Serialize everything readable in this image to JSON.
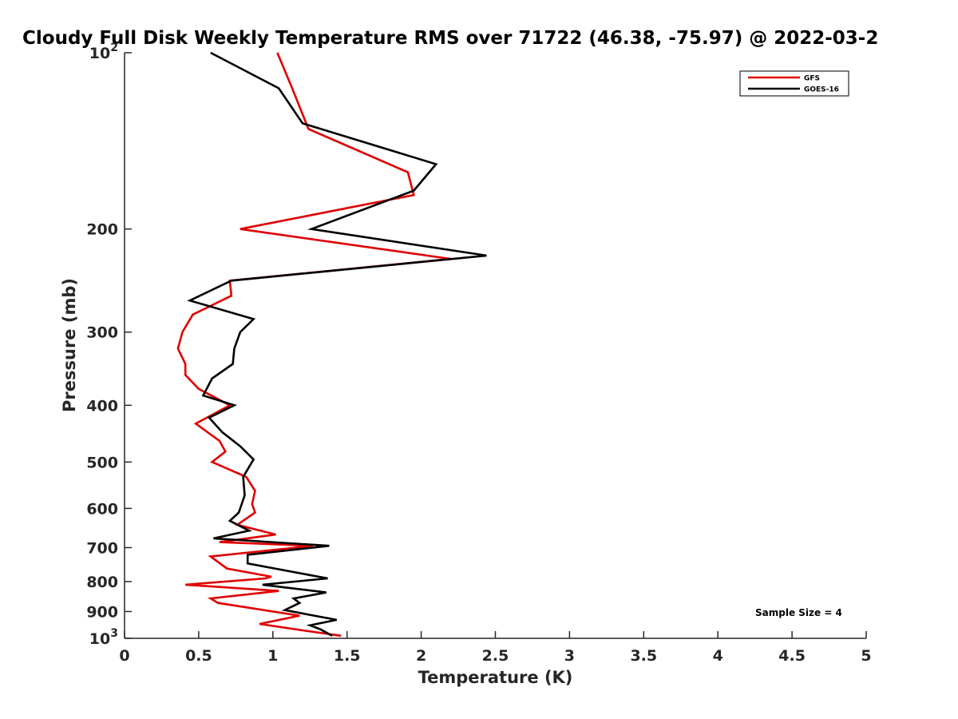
{
  "chart_data": {
    "type": "line",
    "title": "Cloudy Full Disk Weekly Temperature RMS over 71722 (46.38, -75.97) @ 2022-03-2",
    "xlabel": "Temperature (K)",
    "ylabel": "Pressure (mb)",
    "xlim": [
      0,
      5
    ],
    "ylim": [
      100,
      1000
    ],
    "y_scale": "log",
    "y_reversed": true,
    "grid": false,
    "legend_position": "top-right",
    "x_ticks": [
      "0",
      "0.5",
      "1",
      "1.5",
      "2",
      "2.5",
      "3",
      "3.5",
      "4",
      "4.5",
      "5"
    ],
    "y_ticks": [
      {
        "value": 100,
        "base": "10",
        "exp": "2"
      },
      {
        "value": 200,
        "label": "200"
      },
      {
        "value": 300,
        "label": "300"
      },
      {
        "value": 400,
        "label": "400"
      },
      {
        "value": 500,
        "label": "500"
      },
      {
        "value": 600,
        "label": "600"
      },
      {
        "value": 700,
        "label": "700"
      },
      {
        "value": 800,
        "label": "800"
      },
      {
        "value": 900,
        "label": "900"
      },
      {
        "value": 1000,
        "base": "10",
        "exp": "3"
      }
    ],
    "annotation": "Sample Size = 4",
    "series": [
      {
        "name": "GFS",
        "color": "#e00000",
        "points": [
          [
            1.03,
            100
          ],
          [
            1.13,
            115
          ],
          [
            1.24,
            135
          ],
          [
            1.91,
            160
          ],
          [
            1.95,
            175
          ],
          [
            0.78,
            200
          ],
          [
            2.2,
            225
          ],
          [
            0.71,
            245
          ],
          [
            0.72,
            260
          ],
          [
            0.46,
            280
          ],
          [
            0.39,
            300
          ],
          [
            0.36,
            320
          ],
          [
            0.41,
            340
          ],
          [
            0.41,
            355
          ],
          [
            0.5,
            375
          ],
          [
            0.71,
            400
          ],
          [
            0.48,
            430
          ],
          [
            0.64,
            460
          ],
          [
            0.68,
            480
          ],
          [
            0.59,
            500
          ],
          [
            0.82,
            530
          ],
          [
            0.88,
            560
          ],
          [
            0.86,
            590
          ],
          [
            0.88,
            610
          ],
          [
            0.76,
            640
          ],
          [
            1.02,
            665
          ],
          [
            0.64,
            685
          ],
          [
            1.27,
            695
          ],
          [
            0.58,
            725
          ],
          [
            0.69,
            760
          ],
          [
            0.99,
            785
          ],
          [
            0.95,
            790
          ],
          [
            0.41,
            810
          ],
          [
            1.04,
            830
          ],
          [
            0.58,
            855
          ],
          [
            0.63,
            870
          ],
          [
            1.18,
            915
          ],
          [
            0.91,
            945
          ],
          [
            1.27,
            975
          ],
          [
            1.46,
            990
          ]
        ]
      },
      {
        "name": "GOES-16",
        "color": "#000000",
        "points": [
          [
            0.58,
            100
          ],
          [
            1.04,
            115
          ],
          [
            1.2,
            132
          ],
          [
            2.1,
            155
          ],
          [
            1.95,
            172
          ],
          [
            1.26,
            200
          ],
          [
            2.44,
            222
          ],
          [
            0.72,
            245
          ],
          [
            0.44,
            265
          ],
          [
            0.87,
            285
          ],
          [
            0.78,
            300
          ],
          [
            0.74,
            320
          ],
          [
            0.73,
            340
          ],
          [
            0.59,
            360
          ],
          [
            0.53,
            385
          ],
          [
            0.74,
            400
          ],
          [
            0.57,
            420
          ],
          [
            0.66,
            445
          ],
          [
            0.78,
            470
          ],
          [
            0.87,
            495
          ],
          [
            0.8,
            530
          ],
          [
            0.81,
            570
          ],
          [
            0.77,
            610
          ],
          [
            0.71,
            630
          ],
          [
            0.84,
            655
          ],
          [
            0.6,
            675
          ],
          [
            1.38,
            695
          ],
          [
            0.83,
            720
          ],
          [
            0.83,
            745
          ],
          [
            1.37,
            790
          ],
          [
            0.93,
            810
          ],
          [
            1.36,
            835
          ],
          [
            1.14,
            855
          ],
          [
            1.18,
            870
          ],
          [
            1.08,
            895
          ],
          [
            1.43,
            930
          ],
          [
            1.25,
            950
          ],
          [
            1.32,
            965
          ],
          [
            1.4,
            990
          ]
        ]
      }
    ]
  }
}
